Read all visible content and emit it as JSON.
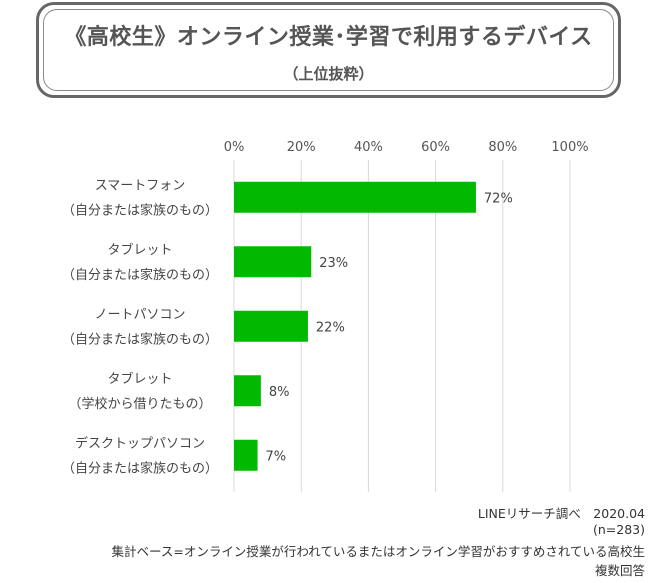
{
  "title": "《高校生》オンライン授業･学習で利用するデバイス",
  "subtitle": "（上位抜粋）",
  "chart_data": {
    "type": "bar",
    "orientation": "horizontal",
    "categories": [
      [
        "スマートフォン",
        "（自分または家族のもの）"
      ],
      [
        "タブレット",
        "（自分または家族のもの）"
      ],
      [
        "ノートパソコン",
        "（自分または家族のもの）"
      ],
      [
        "タブレット",
        "（学校から借りたもの）"
      ],
      [
        "デスクトップパソコン",
        "（自分または家族のもの）"
      ]
    ],
    "values": [
      72,
      23,
      22,
      8,
      7
    ],
    "value_labels": [
      "72%",
      "23%",
      "22%",
      "8%",
      "7%"
    ],
    "xlim": [
      0,
      100
    ],
    "x_ticks": [
      "0%",
      "20%",
      "40%",
      "60%",
      "80%",
      "100%"
    ],
    "x_tick_values": [
      0,
      20,
      40,
      60,
      80,
      100
    ],
    "axis_position": "top",
    "grid": true,
    "bar_color": "#00b900"
  },
  "notes": {
    "source": "LINEリサーチ調べ　2020.04",
    "sample": "(n=283)",
    "base": "集計ベース=オンライン授業が行われているまたはオンライン学習がおすすめされている高校生",
    "answer_type": "複数回答"
  }
}
